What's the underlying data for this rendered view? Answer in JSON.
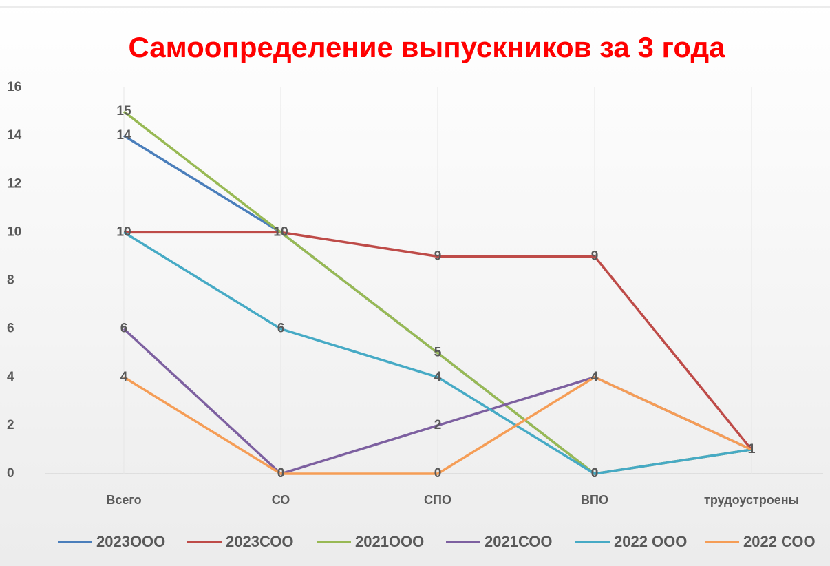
{
  "chart_data": {
    "type": "line",
    "title": "Самоопределение выпускников за 3 года",
    "categories": [
      "Всего",
      "СО",
      "СПО",
      "ВПО",
      "трудоустроены"
    ],
    "series": [
      {
        "name": "2023ООО",
        "color": "#4a7ebb",
        "values": [
          14,
          10,
          5,
          0,
          1
        ]
      },
      {
        "name": "2023СОО",
        "color": "#be4b48",
        "values": [
          10,
          10,
          9,
          9,
          1
        ]
      },
      {
        "name": "2021ООО",
        "color": "#98b954",
        "values": [
          15,
          10,
          5,
          0,
          1
        ]
      },
      {
        "name": "2021СОО",
        "color": "#7d60a0",
        "values": [
          6,
          0,
          2,
          4,
          1
        ]
      },
      {
        "name": "2022 ООО",
        "color": "#46aac5",
        "values": [
          10,
          6,
          4,
          0,
          1
        ]
      },
      {
        "name": "2022 СОО",
        "color": "#f59d56",
        "values": [
          4,
          0,
          0,
          4,
          1
        ]
      }
    ],
    "ylim": [
      0,
      16
    ],
    "yticks": [
      0,
      2,
      4,
      6,
      8,
      10,
      12,
      14,
      16
    ],
    "grid": true
  }
}
